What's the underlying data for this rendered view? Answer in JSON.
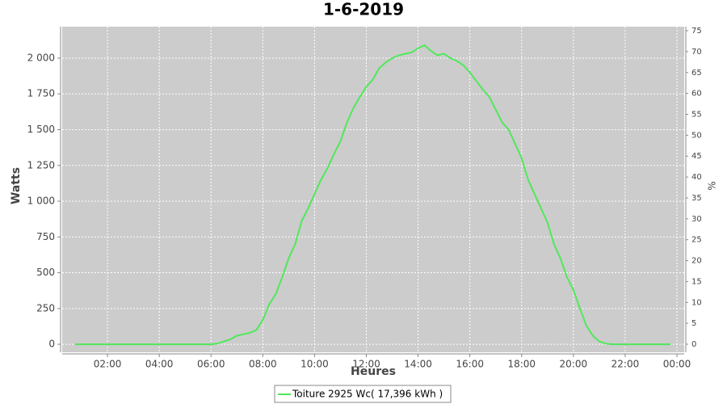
{
  "chart_data": {
    "type": "line",
    "title": "1-6-2019",
    "x_label": "Heures",
    "y_label": "Watts",
    "y2_label": "%",
    "x": [
      0.75,
      1,
      1.25,
      1.5,
      1.75,
      2,
      2.25,
      2.5,
      2.75,
      3,
      3.25,
      3.5,
      3.75,
      4,
      4.25,
      4.5,
      4.75,
      5,
      5.25,
      5.5,
      5.75,
      6,
      6.25,
      6.5,
      6.75,
      7,
      7.25,
      7.5,
      7.75,
      8,
      8.25,
      8.5,
      8.75,
      9,
      9.25,
      9.5,
      9.75,
      10,
      10.25,
      10.5,
      10.75,
      11,
      11.25,
      11.5,
      11.75,
      12,
      12.25,
      12.5,
      12.75,
      13,
      13.25,
      13.5,
      13.75,
      14,
      14.25,
      14.5,
      14.75,
      15,
      15.25,
      15.5,
      15.75,
      16,
      16.25,
      16.5,
      16.75,
      17,
      17.25,
      17.5,
      17.75,
      18,
      18.25,
      18.5,
      18.75,
      19,
      19.25,
      19.5,
      19.75,
      20,
      20.25,
      20.5,
      20.75,
      21,
      21.25,
      21.5,
      21.75,
      22,
      22.25,
      22.5,
      22.75,
      23,
      23.25,
      23.5,
      23.75
    ],
    "series": [
      {
        "name": "Toiture 2925 Wc( 17,396 kWh )",
        "color": "#50e85a",
        "values": [
          0,
          0,
          0,
          0,
          0,
          0,
          0,
          0,
          0,
          0,
          0,
          0,
          0,
          0,
          0,
          0,
          0,
          0,
          0,
          0,
          0,
          0,
          5,
          20,
          35,
          60,
          70,
          80,
          100,
          170,
          280,
          350,
          470,
          600,
          700,
          860,
          950,
          1050,
          1150,
          1230,
          1330,
          1420,
          1550,
          1650,
          1730,
          1800,
          1850,
          1930,
          1970,
          2000,
          2020,
          2030,
          2040,
          2070,
          2090,
          2050,
          2020,
          2030,
          2000,
          1980,
          1950,
          1900,
          1840,
          1780,
          1730,
          1640,
          1550,
          1500,
          1400,
          1300,
          1150,
          1050,
          950,
          850,
          700,
          600,
          470,
          380,
          250,
          130,
          60,
          20,
          5,
          0,
          0,
          0,
          0,
          0,
          0,
          0,
          0,
          0,
          0
        ]
      }
    ],
    "xlim": [
      0.25,
      24.28
    ],
    "xticks": [
      {
        "value": 2,
        "label": "02:00"
      },
      {
        "value": 4,
        "label": "04:00"
      },
      {
        "value": 6,
        "label": "06:00"
      },
      {
        "value": 8,
        "label": "08:00"
      },
      {
        "value": 10,
        "label": "10:00"
      },
      {
        "value": 12,
        "label": "12:00"
      },
      {
        "value": 14,
        "label": "14:00"
      },
      {
        "value": 16,
        "label": "16:00"
      },
      {
        "value": 18,
        "label": "18:00"
      },
      {
        "value": 20,
        "label": "20:00"
      },
      {
        "value": 22,
        "label": "22:00"
      },
      {
        "value": 24,
        "label": "00:00"
      }
    ],
    "ylim": [
      -56,
      2220
    ],
    "yticks": [
      0,
      250,
      500,
      750,
      {
        "value": 1000,
        "label": "1 000"
      },
      {
        "value": 1250,
        "label": "1 250"
      },
      {
        "value": 1500,
        "label": "1 500"
      },
      {
        "value": 1750,
        "label": "1 750"
      },
      {
        "value": 2000,
        "label": "2 000"
      }
    ],
    "y2lim": [
      -1.93,
      75.97
    ],
    "y2ticks": [
      0,
      5,
      10,
      15,
      20,
      25,
      30,
      35,
      40,
      45,
      50,
      55,
      60,
      65,
      70,
      75
    ],
    "grid": true,
    "legend": "bottom"
  }
}
